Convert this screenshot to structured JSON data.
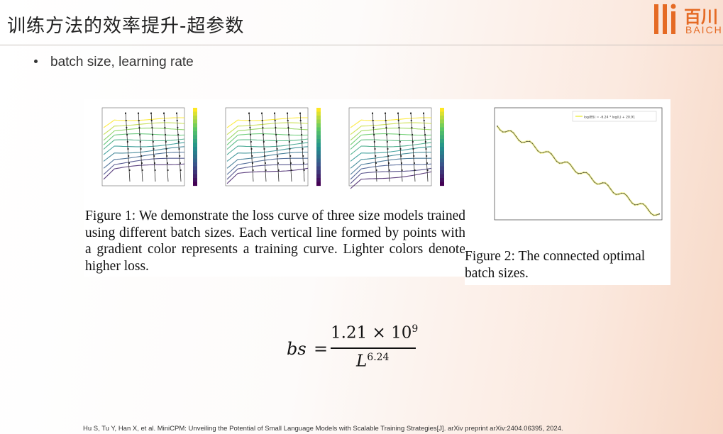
{
  "slide": {
    "title": "训练方法的效率提升-超参数",
    "bullet": "batch size, learning rate"
  },
  "logo": {
    "text": "百川",
    "sub": "BAICHUAN",
    "color": "#e56a24"
  },
  "figure1": {
    "caption": "Figure 1: We demonstrate the loss curve of three size models trained using different batch sizes. Each vertical line formed by points with a gradient color represents a training curve. Lighter colors denote higher loss.",
    "panels": 3
  },
  "figure2": {
    "caption": "Figure 2: The connected optimal batch sizes.",
    "legend": "log(BS) = -6.24 * log(L) + 20.91"
  },
  "formula": {
    "lhs": "bs",
    "equals": "=",
    "numerator": "1.21 × 10",
    "numerator_exp": "9",
    "denominator_base": "L",
    "denominator_exp": "6.24"
  },
  "reference": "Hu S, Tu Y, Han X, et al. MiniCPM: Unveiling the Potential of Small Language Models with Scalable Training Strategies[J]. arXiv preprint arXiv:2404.06395, 2024."
}
